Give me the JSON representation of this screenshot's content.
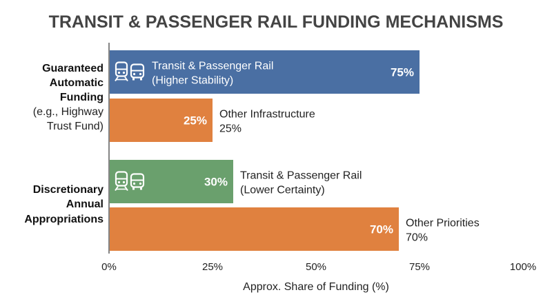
{
  "chart_data": {
    "type": "bar",
    "orientation": "horizontal",
    "title": "TRANSIT & PASSENGER RAIL FUNDING MECHANISMS",
    "xlabel": "Approx. Share of Funding (%)",
    "xlim": [
      0,
      100
    ],
    "xticks": [
      "0%",
      "25%",
      "50%",
      "75%",
      "100%"
    ],
    "grid": false,
    "groups": [
      {
        "label_lines": [
          {
            "text": "Guaranteed",
            "bold": true
          },
          {
            "text": "Automatic",
            "bold": true
          },
          {
            "text": "Funding",
            "bold": true
          },
          {
            "text": "(e.g., Highway",
            "bold": false
          },
          {
            "text": "Trust Fund)",
            "bold": false
          }
        ],
        "bars": [
          {
            "value": 75,
            "value_label": "75%",
            "label_lines": [
              "Transit & Passenger Rail",
              "(Higher Stability)"
            ],
            "color": "#4a6fa3",
            "icons": [
              "train-icon",
              "bus-icon"
            ],
            "label_position": "inside"
          },
          {
            "value": 25,
            "value_label": "25%",
            "label_lines": [
              "Other Infrastructure",
              "25%"
            ],
            "color": "#e0813f",
            "icons": [],
            "label_position": "outside"
          }
        ]
      },
      {
        "label_lines": [
          {
            "text": "Discretionary",
            "bold": true
          },
          {
            "text": "Annual",
            "bold": true
          },
          {
            "text": "Appropriations",
            "bold": true
          }
        ],
        "bars": [
          {
            "value": 30,
            "value_label": "30%",
            "label_lines": [
              "Transit & Passenger Rail",
              "(Lower Certainty)"
            ],
            "color": "#6aa06d",
            "icons": [
              "train-icon",
              "bus-icon"
            ],
            "label_position": "outside"
          },
          {
            "value": 70,
            "value_label": "70%",
            "label_lines": [
              "Other Priorities",
              "70%"
            ],
            "color": "#e0813f",
            "icons": [],
            "label_position": "outside"
          }
        ]
      }
    ]
  }
}
